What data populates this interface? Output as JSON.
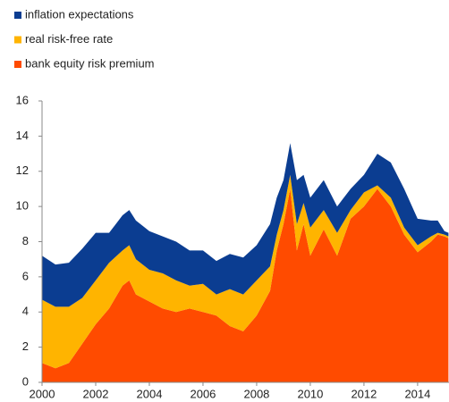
{
  "chart_data": {
    "type": "stacked-area",
    "x": [
      2000.0,
      2000.5,
      2001.0,
      2001.5,
      2002.0,
      2002.5,
      2003.0,
      2003.25,
      2003.5,
      2004.0,
      2004.5,
      2005.0,
      2005.5,
      2006.0,
      2006.5,
      2007.0,
      2007.5,
      2008.0,
      2008.5,
      2008.75,
      2009.0,
      2009.25,
      2009.5,
      2009.75,
      2010.0,
      2010.5,
      2011.0,
      2011.5,
      2012.0,
      2012.5,
      2013.0,
      2013.5,
      2014.0,
      2014.5,
      2014.75,
      2015.0,
      2015.15
    ],
    "series": [
      {
        "name": "inflation expectations",
        "color": "#0b3d91",
        "values": [
          2.5,
          2.4,
          2.5,
          2.8,
          2.7,
          1.7,
          2.0,
          2.0,
          2.2,
          2.2,
          2.1,
          2.2,
          2.0,
          1.9,
          1.9,
          2.0,
          2.1,
          2.0,
          2.4,
          2.1,
          1.7,
          1.8,
          2.5,
          1.6,
          1.7,
          1.7,
          1.5,
          1.2,
          1.0,
          1.8,
          2.0,
          2.2,
          1.5,
          0.9,
          0.7,
          0.2,
          0.2
        ]
      },
      {
        "name": "real risk-free rate",
        "color": "#ffb400",
        "values": [
          3.6,
          3.5,
          3.2,
          2.6,
          2.5,
          2.6,
          2.0,
          2.0,
          2.0,
          1.8,
          2.0,
          1.8,
          1.3,
          1.6,
          1.2,
          2.1,
          2.1,
          2.0,
          1.4,
          0.9,
          0.8,
          0.8,
          1.5,
          1.2,
          1.6,
          1.1,
          1.3,
          0.5,
          0.8,
          0.2,
          0.5,
          0.4,
          0.4,
          0.3,
          0.1,
          0.1,
          0.1
        ]
      },
      {
        "name": "bank equity risk premium",
        "color": "#ff4b00",
        "values": [
          1.1,
          0.8,
          1.1,
          2.2,
          3.3,
          4.2,
          5.5,
          5.8,
          5.0,
          4.6,
          4.2,
          4.0,
          4.2,
          4.0,
          3.8,
          3.2,
          2.9,
          3.8,
          5.2,
          7.5,
          9.0,
          11.0,
          7.5,
          9.0,
          7.2,
          8.7,
          7.2,
          9.3,
          10.0,
          11.0,
          10.0,
          8.4,
          7.4,
          8.0,
          8.4,
          8.3,
          8.2
        ]
      }
    ],
    "xlim": [
      2000,
      2015.17
    ],
    "xticks": [
      2000,
      2002,
      2004,
      2006,
      2008,
      2010,
      2012,
      2014
    ],
    "ylim": [
      0,
      16
    ],
    "yticks": [
      0,
      2,
      4,
      6,
      8,
      10,
      12,
      14,
      16
    ]
  }
}
